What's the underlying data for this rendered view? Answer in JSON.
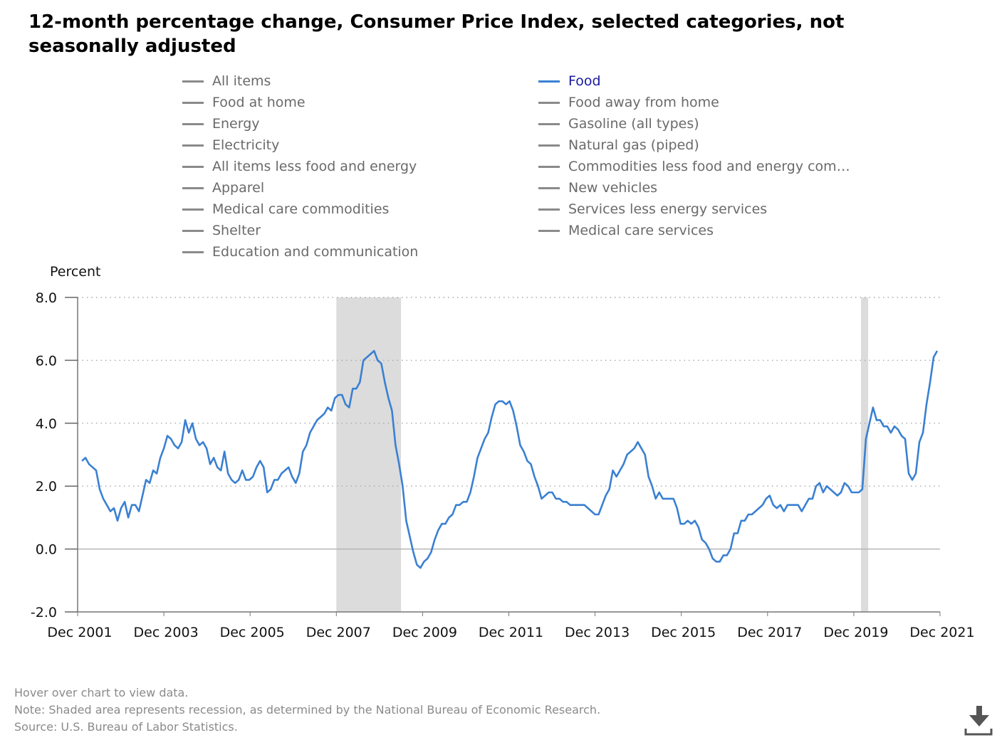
{
  "title": "12-month percentage change, Consumer Price Index, selected categories, not seasonally adjusted",
  "legend": {
    "left": [
      "All items",
      "Food at home",
      "Energy",
      "Electricity",
      "All items less food and energy",
      "Apparel",
      "Medical care commodities",
      "Shelter",
      "Education and communication"
    ],
    "right": [
      "Food",
      "Food away from home",
      "Gasoline (all types)",
      "Natural gas (piped)",
      "Commodities less food and energy com…",
      "New vehicles",
      "Services less energy services",
      "Medical care services"
    ],
    "active": "Food"
  },
  "colors": {
    "series": "#3a80d2",
    "recession": "#dcdcdc",
    "inactive_legend": "#8a8a8a"
  },
  "notes": {
    "hover": "Hover over chart to view data.",
    "note": "Note: Shaded area represents recession, as determined by the National Bureau of Economic Research.",
    "source": "Source: U.S. Bureau of Labor Statistics."
  },
  "icons": {
    "download": "download-icon"
  },
  "chart_data": {
    "type": "line",
    "ylabel": "Percent",
    "ylim": [
      -2.0,
      8.0
    ],
    "yticks": [
      "8.0",
      "6.0",
      "4.0",
      "2.0",
      "0.0",
      "-2.0"
    ],
    "xticks": [
      "Dec 2001",
      "Dec 2003",
      "Dec 2005",
      "Dec 2007",
      "Dec 2009",
      "Dec 2011",
      "Dec 2013",
      "Dec 2015",
      "Dec 2017",
      "Dec 2019",
      "Dec 2021"
    ],
    "x_start": "Dec 2001",
    "x_end": "Dec 2021",
    "grid": "horizontal dotted",
    "recessions": [
      {
        "start": "Dec 2007",
        "end": "Jun 2009"
      },
      {
        "start": "Feb 2020",
        "end": "Apr 2020"
      }
    ],
    "series": [
      {
        "name": "Food",
        "values": [
          2.8,
          2.9,
          2.7,
          2.6,
          2.5,
          1.9,
          1.6,
          1.4,
          1.2,
          1.3,
          0.9,
          1.3,
          1.5,
          1.0,
          1.4,
          1.4,
          1.2,
          1.7,
          2.2,
          2.1,
          2.5,
          2.4,
          2.9,
          3.2,
          3.6,
          3.5,
          3.3,
          3.2,
          3.4,
          4.1,
          3.7,
          4.0,
          3.5,
          3.3,
          3.4,
          3.2,
          2.7,
          2.9,
          2.6,
          2.5,
          3.1,
          2.4,
          2.2,
          2.1,
          2.2,
          2.5,
          2.2,
          2.2,
          2.3,
          2.6,
          2.8,
          2.6,
          1.8,
          1.9,
          2.2,
          2.2,
          2.4,
          2.5,
          2.6,
          2.3,
          2.1,
          2.4,
          3.1,
          3.3,
          3.7,
          3.9,
          4.1,
          4.2,
          4.3,
          4.5,
          4.4,
          4.8,
          4.9,
          4.9,
          4.6,
          4.5,
          5.1,
          5.1,
          5.3,
          6.0,
          6.1,
          6.2,
          6.3,
          6.0,
          5.9,
          5.3,
          4.8,
          4.4,
          3.3,
          2.7,
          2.0,
          0.9,
          0.4,
          -0.1,
          -0.5,
          -0.6,
          -0.4,
          -0.3,
          -0.1,
          0.3,
          0.6,
          0.8,
          0.8,
          1.0,
          1.1,
          1.4,
          1.4,
          1.5,
          1.5,
          1.8,
          2.3,
          2.9,
          3.2,
          3.5,
          3.7,
          4.2,
          4.6,
          4.7,
          4.7,
          4.6,
          4.7,
          4.4,
          3.9,
          3.3,
          3.1,
          2.8,
          2.7,
          2.3,
          2.0,
          1.6,
          1.7,
          1.8,
          1.8,
          1.6,
          1.6,
          1.5,
          1.5,
          1.4,
          1.4,
          1.4,
          1.4,
          1.4,
          1.3,
          1.2,
          1.1,
          1.1,
          1.4,
          1.7,
          1.9,
          2.5,
          2.3,
          2.5,
          2.7,
          3.0,
          3.1,
          3.2,
          3.4,
          3.2,
          3.0,
          2.3,
          2.0,
          1.6,
          1.8,
          1.6,
          1.6,
          1.6,
          1.6,
          1.3,
          0.8,
          0.8,
          0.9,
          0.8,
          0.9,
          0.7,
          0.3,
          0.2,
          0.0,
          -0.3,
          -0.4,
          -0.4,
          -0.2,
          -0.2,
          0.0,
          0.5,
          0.5,
          0.9,
          0.9,
          1.1,
          1.1,
          1.2,
          1.3,
          1.4,
          1.6,
          1.7,
          1.4,
          1.3,
          1.4,
          1.2,
          1.4,
          1.4,
          1.4,
          1.4,
          1.2,
          1.4,
          1.6,
          1.6,
          2.0,
          2.1,
          1.8,
          2.0,
          1.9,
          1.8,
          1.7,
          1.8,
          2.1,
          2.0,
          1.8,
          1.8,
          1.8,
          1.9,
          3.5,
          4.0,
          4.5,
          4.1,
          4.1,
          3.9,
          3.9,
          3.7,
          3.9,
          3.8,
          3.6,
          3.5,
          2.4,
          2.2,
          2.4,
          3.4,
          3.7,
          4.6,
          5.3,
          6.1,
          6.3
        ]
      }
    ]
  }
}
